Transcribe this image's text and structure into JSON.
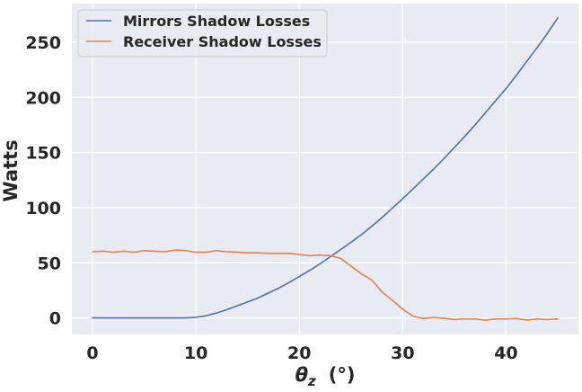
{
  "chart_data": {
    "type": "line",
    "ylabel": "Watts",
    "xlabel": {
      "symbol": "θ",
      "subscript": "z",
      "unit": "(°)"
    },
    "xlim": [
      -2,
      47
    ],
    "ylim": [
      -15,
      285
    ],
    "xticks": [
      0,
      10,
      20,
      30,
      40
    ],
    "yticks": [
      0,
      50,
      100,
      150,
      200,
      250
    ],
    "grid": true,
    "background": "#eaeaf2",
    "legend": {
      "position": "top-left"
    },
    "series": [
      {
        "name": "Mirrors Shadow Losses",
        "color": "#4c72b0",
        "x": [
          0,
          1,
          2,
          3,
          4,
          5,
          6,
          7,
          8,
          9,
          10,
          11,
          12,
          13,
          14,
          15,
          16,
          17,
          18,
          19,
          20,
          21,
          22,
          23,
          24,
          25,
          26,
          27,
          28,
          29,
          30,
          31,
          32,
          33,
          34,
          35,
          36,
          37,
          38,
          39,
          40,
          41,
          42,
          43,
          44,
          45
        ],
        "y": [
          0,
          0,
          0,
          0,
          0,
          0,
          0,
          0,
          0,
          0,
          0.5,
          2,
          4.5,
          7.5,
          11,
          14.5,
          18,
          22.5,
          27,
          32,
          37.5,
          43,
          49,
          55.5,
          62,
          68.5,
          75.5,
          83,
          91,
          99.5,
          108,
          117,
          126,
          135,
          144.5,
          154.5,
          164.5,
          175,
          186,
          197,
          208,
          220,
          232.5,
          245,
          258,
          272
        ]
      },
      {
        "name": "Receiver Shadow Losses",
        "color": "#dd8452",
        "x": [
          0,
          1,
          2,
          3,
          4,
          5,
          6,
          7,
          8,
          9,
          10,
          11,
          12,
          13,
          14,
          15,
          16,
          17,
          18,
          19,
          20,
          21,
          22,
          23,
          24,
          25,
          26,
          27,
          28,
          29,
          30,
          31,
          32,
          33,
          34,
          35,
          36,
          37,
          38,
          39,
          40,
          41,
          42,
          43,
          44,
          45
        ],
        "y": [
          60,
          60.5,
          59.5,
          60.5,
          59.5,
          61,
          60.5,
          60,
          61.5,
          61,
          59.5,
          59.5,
          61,
          60,
          59.5,
          59,
          59,
          58.5,
          58.5,
          58.5,
          57.5,
          56.5,
          57,
          56.5,
          54,
          47,
          40,
          34.5,
          23.5,
          16,
          8,
          1.5,
          -0.5,
          0.5,
          -0.5,
          -1.5,
          -1,
          -1,
          -2,
          -1,
          -1,
          -0.5,
          -2,
          -1,
          -1.5,
          -1
        ]
      }
    ]
  }
}
